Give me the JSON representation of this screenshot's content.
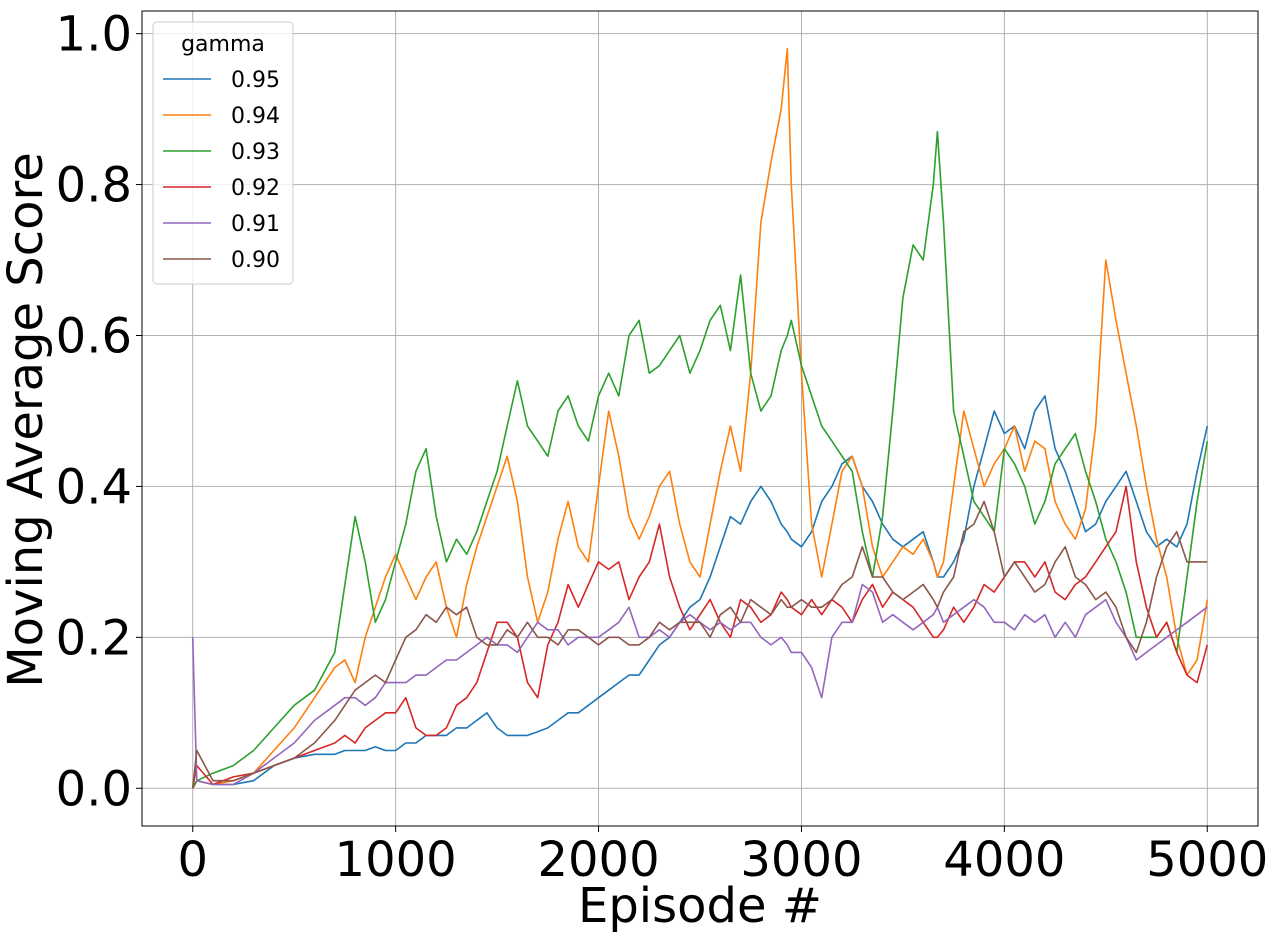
{
  "chart_data": {
    "type": "line",
    "xlabel": "Episode #",
    "ylabel": "Moving Average Score",
    "xlim": [
      -250,
      5250
    ],
    "ylim": [
      -0.05,
      1.03
    ],
    "xticks": [
      0,
      1000,
      2000,
      3000,
      4000,
      5000
    ],
    "xtick_labels": [
      "0",
      "1000",
      "2000",
      "3000",
      "4000",
      "5000"
    ],
    "yticks": [
      0.0,
      0.2,
      0.4,
      0.6,
      0.8,
      1.0
    ],
    "ytick_labels": [
      "0.0",
      "0.2",
      "0.4",
      "0.6",
      "0.8",
      "1.0"
    ],
    "grid": true,
    "legend": {
      "title": "gamma",
      "placement": "top-left"
    },
    "x": [
      0,
      20,
      100,
      200,
      300,
      400,
      500,
      600,
      700,
      750,
      800,
      850,
      900,
      950,
      1000,
      1050,
      1100,
      1150,
      1200,
      1250,
      1300,
      1350,
      1400,
      1450,
      1500,
      1550,
      1600,
      1650,
      1700,
      1750,
      1800,
      1850,
      1900,
      1950,
      2000,
      2050,
      2100,
      2150,
      2200,
      2250,
      2300,
      2350,
      2400,
      2450,
      2500,
      2550,
      2600,
      2650,
      2700,
      2750,
      2800,
      2850,
      2900,
      2930,
      2950,
      3000,
      3050,
      3100,
      3150,
      3200,
      3250,
      3300,
      3350,
      3400,
      3450,
      3500,
      3550,
      3600,
      3650,
      3670,
      3700,
      3750,
      3800,
      3850,
      3900,
      3950,
      4000,
      4050,
      4100,
      4150,
      4200,
      4250,
      4300,
      4350,
      4400,
      4450,
      4500,
      4550,
      4600,
      4650,
      4700,
      4750,
      4800,
      4850,
      4900,
      4950,
      5000
    ],
    "series": [
      {
        "name": "0.95",
        "color": "#1f77b4",
        "values": [
          0.0,
          0.01,
          0.005,
          0.005,
          0.01,
          0.03,
          0.04,
          0.045,
          0.045,
          0.05,
          0.05,
          0.05,
          0.055,
          0.05,
          0.05,
          0.06,
          0.06,
          0.07,
          0.07,
          0.07,
          0.08,
          0.08,
          0.09,
          0.1,
          0.08,
          0.07,
          0.07,
          0.07,
          0.075,
          0.08,
          0.09,
          0.1,
          0.1,
          0.11,
          0.12,
          0.13,
          0.14,
          0.15,
          0.15,
          0.17,
          0.19,
          0.2,
          0.22,
          0.24,
          0.25,
          0.28,
          0.32,
          0.36,
          0.35,
          0.38,
          0.4,
          0.38,
          0.35,
          0.34,
          0.33,
          0.32,
          0.34,
          0.38,
          0.4,
          0.43,
          0.44,
          0.4,
          0.38,
          0.35,
          0.33,
          0.32,
          0.33,
          0.34,
          0.3,
          0.28,
          0.28,
          0.3,
          0.33,
          0.4,
          0.45,
          0.5,
          0.47,
          0.48,
          0.45,
          0.5,
          0.52,
          0.45,
          0.42,
          0.38,
          0.34,
          0.35,
          0.38,
          0.4,
          0.42,
          0.38,
          0.34,
          0.32,
          0.33,
          0.32,
          0.35,
          0.42,
          0.48
        ]
      },
      {
        "name": "0.94",
        "color": "#ff7f0e",
        "values": [
          0.0,
          0.01,
          0.005,
          0.01,
          0.02,
          0.05,
          0.08,
          0.12,
          0.16,
          0.17,
          0.14,
          0.2,
          0.24,
          0.28,
          0.31,
          0.28,
          0.25,
          0.28,
          0.3,
          0.24,
          0.2,
          0.27,
          0.32,
          0.36,
          0.4,
          0.44,
          0.38,
          0.28,
          0.22,
          0.26,
          0.33,
          0.38,
          0.32,
          0.3,
          0.4,
          0.5,
          0.44,
          0.36,
          0.33,
          0.36,
          0.4,
          0.42,
          0.35,
          0.3,
          0.28,
          0.35,
          0.42,
          0.48,
          0.42,
          0.55,
          0.75,
          0.83,
          0.9,
          0.98,
          0.8,
          0.55,
          0.35,
          0.28,
          0.35,
          0.42,
          0.44,
          0.4,
          0.32,
          0.28,
          0.3,
          0.32,
          0.31,
          0.33,
          0.3,
          0.28,
          0.3,
          0.4,
          0.5,
          0.45,
          0.4,
          0.43,
          0.45,
          0.48,
          0.42,
          0.46,
          0.45,
          0.38,
          0.35,
          0.33,
          0.37,
          0.48,
          0.7,
          0.62,
          0.55,
          0.48,
          0.4,
          0.33,
          0.28,
          0.2,
          0.15,
          0.17,
          0.25
        ]
      },
      {
        "name": "0.93",
        "color": "#2ca02c",
        "values": [
          0.0,
          0.01,
          0.02,
          0.03,
          0.05,
          0.08,
          0.11,
          0.13,
          0.18,
          0.27,
          0.36,
          0.3,
          0.22,
          0.25,
          0.3,
          0.35,
          0.42,
          0.45,
          0.36,
          0.3,
          0.33,
          0.31,
          0.34,
          0.38,
          0.42,
          0.48,
          0.54,
          0.48,
          0.46,
          0.44,
          0.5,
          0.52,
          0.48,
          0.46,
          0.52,
          0.55,
          0.52,
          0.6,
          0.62,
          0.55,
          0.56,
          0.58,
          0.6,
          0.55,
          0.58,
          0.62,
          0.64,
          0.58,
          0.68,
          0.55,
          0.5,
          0.52,
          0.58,
          0.6,
          0.62,
          0.56,
          0.52,
          0.48,
          0.46,
          0.44,
          0.42,
          0.34,
          0.28,
          0.36,
          0.5,
          0.65,
          0.72,
          0.7,
          0.8,
          0.87,
          0.75,
          0.5,
          0.44,
          0.38,
          0.36,
          0.34,
          0.45,
          0.43,
          0.4,
          0.35,
          0.38,
          0.43,
          0.45,
          0.47,
          0.42,
          0.38,
          0.33,
          0.3,
          0.26,
          0.2,
          0.2,
          0.2,
          0.22,
          0.18,
          0.28,
          0.38,
          0.46
        ]
      },
      {
        "name": "0.92",
        "color": "#d62728",
        "values": [
          0.0,
          0.03,
          0.005,
          0.015,
          0.02,
          0.03,
          0.04,
          0.05,
          0.06,
          0.07,
          0.06,
          0.08,
          0.09,
          0.1,
          0.1,
          0.12,
          0.08,
          0.07,
          0.07,
          0.08,
          0.11,
          0.12,
          0.14,
          0.18,
          0.22,
          0.22,
          0.2,
          0.14,
          0.12,
          0.19,
          0.22,
          0.27,
          0.24,
          0.27,
          0.3,
          0.29,
          0.3,
          0.25,
          0.28,
          0.3,
          0.35,
          0.28,
          0.24,
          0.21,
          0.23,
          0.25,
          0.22,
          0.2,
          0.25,
          0.24,
          0.22,
          0.23,
          0.26,
          0.25,
          0.24,
          0.23,
          0.25,
          0.23,
          0.25,
          0.24,
          0.22,
          0.25,
          0.27,
          0.24,
          0.26,
          0.25,
          0.24,
          0.22,
          0.2,
          0.2,
          0.21,
          0.24,
          0.22,
          0.24,
          0.27,
          0.26,
          0.28,
          0.3,
          0.3,
          0.28,
          0.3,
          0.26,
          0.25,
          0.27,
          0.28,
          0.3,
          0.32,
          0.34,
          0.4,
          0.3,
          0.24,
          0.2,
          0.22,
          0.18,
          0.15,
          0.14,
          0.19
        ]
      },
      {
        "name": "0.91",
        "color": "#9467bd",
        "values": [
          0.2,
          0.01,
          0.005,
          0.005,
          0.02,
          0.04,
          0.06,
          0.09,
          0.11,
          0.12,
          0.12,
          0.11,
          0.12,
          0.14,
          0.14,
          0.14,
          0.15,
          0.15,
          0.16,
          0.17,
          0.17,
          0.18,
          0.19,
          0.2,
          0.19,
          0.19,
          0.18,
          0.2,
          0.22,
          0.21,
          0.21,
          0.19,
          0.2,
          0.2,
          0.2,
          0.21,
          0.22,
          0.24,
          0.2,
          0.2,
          0.21,
          0.2,
          0.22,
          0.23,
          0.22,
          0.21,
          0.22,
          0.21,
          0.22,
          0.22,
          0.2,
          0.19,
          0.2,
          0.19,
          0.18,
          0.18,
          0.16,
          0.12,
          0.2,
          0.22,
          0.22,
          0.27,
          0.26,
          0.22,
          0.23,
          0.22,
          0.21,
          0.22,
          0.23,
          0.24,
          0.22,
          0.23,
          0.24,
          0.25,
          0.24,
          0.22,
          0.22,
          0.21,
          0.23,
          0.22,
          0.23,
          0.2,
          0.22,
          0.2,
          0.23,
          0.24,
          0.25,
          0.22,
          0.2,
          0.17,
          0.18,
          0.19,
          0.2,
          0.21,
          0.22,
          0.23,
          0.24
        ]
      },
      {
        "name": "0.90",
        "color": "#8c564b",
        "values": [
          0.0,
          0.05,
          0.01,
          0.01,
          0.02,
          0.03,
          0.04,
          0.06,
          0.09,
          0.11,
          0.13,
          0.14,
          0.15,
          0.14,
          0.17,
          0.2,
          0.21,
          0.23,
          0.22,
          0.24,
          0.23,
          0.24,
          0.2,
          0.19,
          0.19,
          0.21,
          0.2,
          0.22,
          0.2,
          0.2,
          0.19,
          0.21,
          0.21,
          0.2,
          0.19,
          0.2,
          0.2,
          0.19,
          0.19,
          0.2,
          0.22,
          0.21,
          0.22,
          0.22,
          0.22,
          0.2,
          0.23,
          0.24,
          0.22,
          0.25,
          0.24,
          0.23,
          0.25,
          0.24,
          0.24,
          0.25,
          0.24,
          0.24,
          0.25,
          0.27,
          0.28,
          0.32,
          0.28,
          0.28,
          0.26,
          0.25,
          0.26,
          0.27,
          0.25,
          0.24,
          0.26,
          0.28,
          0.34,
          0.35,
          0.38,
          0.34,
          0.28,
          0.3,
          0.28,
          0.26,
          0.27,
          0.3,
          0.32,
          0.28,
          0.27,
          0.25,
          0.26,
          0.24,
          0.2,
          0.18,
          0.22,
          0.28,
          0.32,
          0.34,
          0.3,
          0.3,
          0.3
        ]
      }
    ]
  }
}
